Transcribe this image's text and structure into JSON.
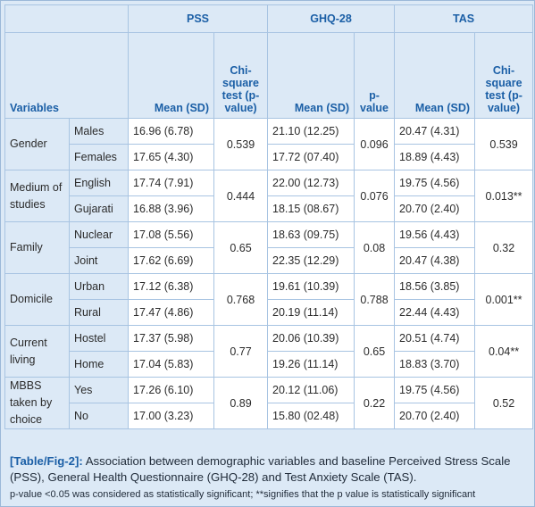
{
  "groups": {
    "pss": "PSS",
    "ghq": "GHQ-28",
    "tas": "TAS"
  },
  "subheaders": {
    "variables": "Variables",
    "pss_mean": "Mean (SD)",
    "pss_p": "Chi-square test (p-value)",
    "ghq_mean": "Mean (SD)",
    "ghq_p": "p-value",
    "tas_mean": "Mean (SD)",
    "tas_p": "Chi-square test (p-value)"
  },
  "rows": [
    {
      "variable": "Gender",
      "levels": [
        {
          "level": "Males",
          "pss": "16.96 (6.78)",
          "ghq": "21.10 (12.25)",
          "tas": "20.47 (4.31)"
        },
        {
          "level": "Females",
          "pss": "17.65 (4.30)",
          "ghq": "17.72 (07.40)",
          "tas": "18.89 (4.43)"
        }
      ],
      "pss_p": "0.539",
      "ghq_p": "0.096",
      "tas_p": "0.539"
    },
    {
      "variable": "Medium of studies",
      "levels": [
        {
          "level": "English",
          "pss": "17.74 (7.91)",
          "ghq": "22.00 (12.73)",
          "tas": "19.75 (4.56)"
        },
        {
          "level": "Gujarati",
          "pss": "16.88 (3.96)",
          "ghq": "18.15 (08.67)",
          "tas": "20.70 (2.40)"
        }
      ],
      "pss_p": "0.444",
      "ghq_p": "0.076",
      "tas_p": "0.013**"
    },
    {
      "variable": "Family",
      "levels": [
        {
          "level": "Nuclear",
          "pss": "17.08 (5.56)",
          "ghq": "18.63 (09.75)",
          "tas": "19.56 (4.43)"
        },
        {
          "level": "Joint",
          "pss": "17.62 (6.69)",
          "ghq": "22.35 (12.29)",
          "tas": "20.47 (4.38)"
        }
      ],
      "pss_p": "0.65",
      "ghq_p": "0.08",
      "tas_p": "0.32"
    },
    {
      "variable": "Domicile",
      "levels": [
        {
          "level": "Urban",
          "pss": "17.12 (6.38)",
          "ghq": "19.61 (10.39)",
          "tas": "18.56 (3.85)"
        },
        {
          "level": "Rural",
          "pss": "17.47 (4.86)",
          "ghq": "20.19 (11.14)",
          "tas": "22.44 (4.43)"
        }
      ],
      "pss_p": "0.768",
      "ghq_p": "0.788",
      "tas_p": "0.001**"
    },
    {
      "variable": "Current living",
      "levels": [
        {
          "level": "Hostel",
          "pss": "17.37 (5.98)",
          "ghq": "20.06 (10.39)",
          "tas": "20.51 (4.74)"
        },
        {
          "level": "Home",
          "pss": "17.04 (5.83)",
          "ghq": "19.26 (11.14)",
          "tas": "18.83 (3.70)"
        }
      ],
      "pss_p": "0.77",
      "ghq_p": "0.65",
      "tas_p": "0.04**"
    },
    {
      "variable": "MBBS taken by choice",
      "levels": [
        {
          "level": "Yes",
          "pss": "17.26 (6.10)",
          "ghq": "20.12 (11.06)",
          "tas": "19.75 (4.56)"
        },
        {
          "level": "No",
          "pss": "17.00 (3.23)",
          "ghq": "15.80 (02.48)",
          "tas": "20.70 (2.40)"
        }
      ],
      "pss_p": "0.89",
      "ghq_p": "0.22",
      "tas_p": "0.52"
    }
  ],
  "caption": {
    "label": "[Table/Fig-2]:",
    "text": " Association between demographic variables and baseline Perceived Stress Scale (PSS), General Health Questionnaire (GHQ-28) and Test Anxiety Scale (TAS).",
    "note": "p-value <0.05 was considered as statistically significant; **signifies that the p value is statistically significant"
  },
  "colors": {
    "header_text": "#1b5fa6",
    "shade": "#dce9f6",
    "border": "#a8c4e2"
  }
}
